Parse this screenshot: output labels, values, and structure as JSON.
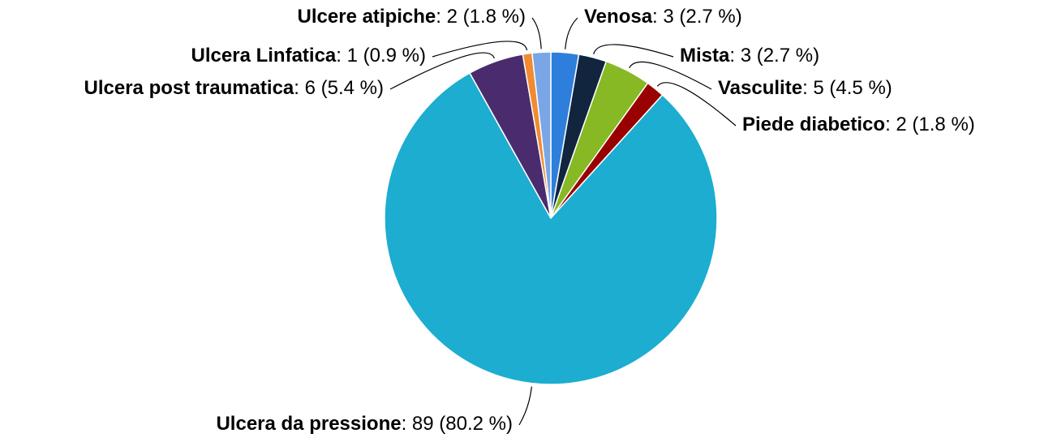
{
  "chart_data": {
    "type": "pie",
    "categories": [
      "Venosa",
      "Mista",
      "Vasculite",
      "Piede diabetico",
      "Ulcera da pressione",
      "Ulcera post traumatica",
      "Ulcera Linfatica",
      "Ulcere atipiche"
    ],
    "values": [
      3,
      3,
      5,
      2,
      89,
      6,
      1,
      2
    ],
    "value_labels": [
      "3 (2.7 %)",
      "3 (2.7 %)",
      "5 (4.5 %)",
      "2 (1.8 %)",
      "89 (80.2 %)",
      "6 (5.4 %)",
      "1 (0.9 %)",
      "2 (1.8 %)"
    ],
    "colors": [
      "#2e7fdb",
      "#11253f",
      "#86b923",
      "#990000",
      "#1cadd0",
      "#4a2c6e",
      "#f08b32",
      "#7aa6e6"
    ]
  }
}
